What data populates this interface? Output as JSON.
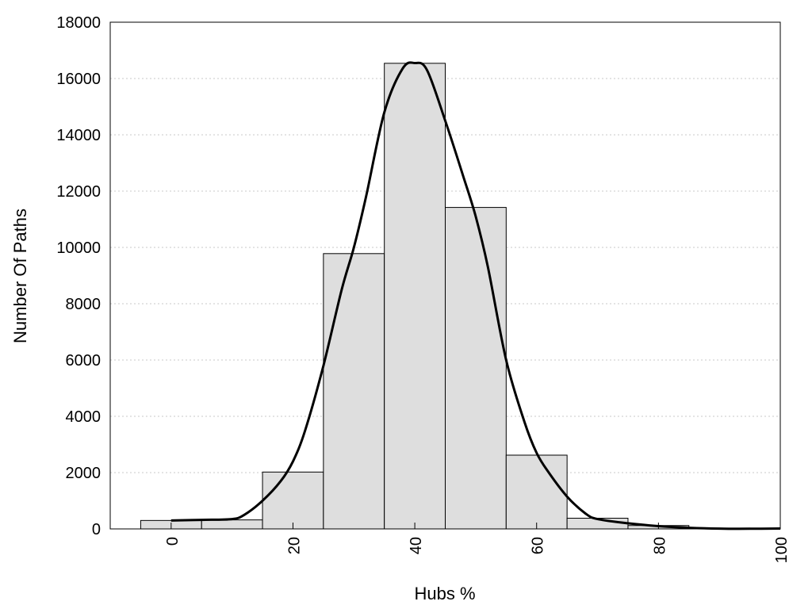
{
  "chart_data": {
    "type": "bar",
    "title": "",
    "xlabel": "Hubs %",
    "ylabel": "Number Of Paths",
    "xlim": [
      -10,
      100
    ],
    "ylim": [
      0,
      18000
    ],
    "grid": true,
    "x_ticks": [
      "0",
      "20",
      "40",
      "60",
      "80",
      "100"
    ],
    "y_ticks": [
      "0",
      "2000",
      "4000",
      "6000",
      "8000",
      "10000",
      "12000",
      "14000",
      "16000",
      "18000"
    ],
    "bins": [
      {
        "x_start": -5,
        "x_end": 5,
        "value": 300
      },
      {
        "x_start": 5,
        "x_end": 15,
        "value": 320
      },
      {
        "x_start": 15,
        "x_end": 25,
        "value": 2020
      },
      {
        "x_start": 25,
        "x_end": 35,
        "value": 9780
      },
      {
        "x_start": 35,
        "x_end": 45,
        "value": 16540
      },
      {
        "x_start": 45,
        "x_end": 55,
        "value": 11420
      },
      {
        "x_start": 55,
        "x_end": 65,
        "value": 2620
      },
      {
        "x_start": 65,
        "x_end": 75,
        "value": 380
      },
      {
        "x_start": 75,
        "x_end": 85,
        "value": 120
      },
      {
        "x_start": 85,
        "x_end": 95,
        "value": 30
      },
      {
        "x_start": 95,
        "x_end": 105,
        "value": 10
      }
    ],
    "curve": {
      "x": [
        0,
        5,
        10,
        12,
        15,
        18,
        20,
        22,
        25,
        28,
        30,
        32,
        35,
        38,
        40,
        42,
        45,
        48,
        50,
        52,
        55,
        58,
        60,
        62,
        65,
        68,
        70,
        75,
        80,
        85,
        90,
        95,
        100
      ],
      "y": [
        300,
        320,
        350,
        500,
        1000,
        1700,
        2400,
        3500,
        5800,
        8500,
        10000,
        11800,
        14800,
        16350,
        16550,
        16300,
        14500,
        12500,
        11100,
        9300,
        6000,
        3800,
        2700,
        2000,
        1150,
        550,
        350,
        200,
        100,
        40,
        10,
        5,
        15
      ]
    }
  }
}
